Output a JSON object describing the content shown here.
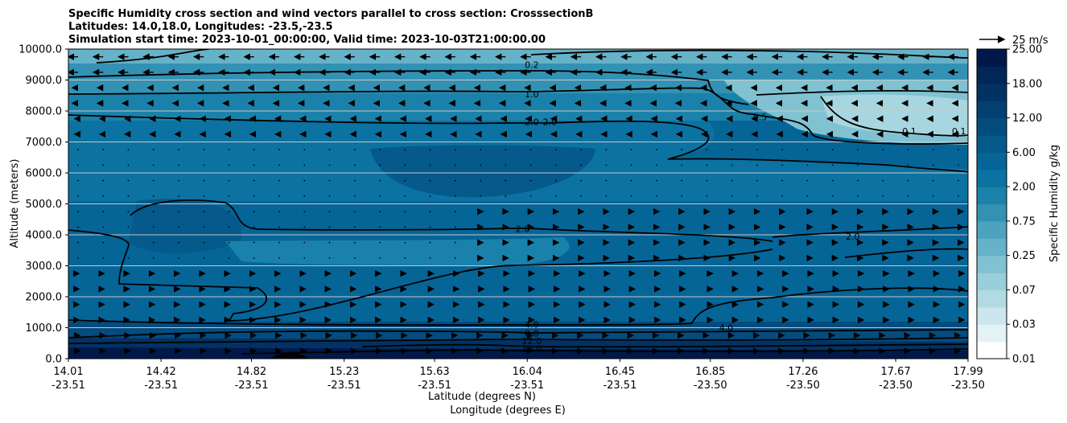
{
  "chart_data": {
    "type": "contourf",
    "title_lines": [
      "Specific Humidity cross section and wind vectors parallel to cross section: CrosssectionB",
      "Latitudes: 14.0,18.0, Longitudes: -23.5,-23.5",
      "Simulation start time: 2023-10-01_00:00:00, Valid time: 2023-10-03T21:00:00.00"
    ],
    "ylabel": "Altitude (meters)",
    "xlabel_lines": [
      "Latitude (degrees N)",
      "Longitude (degrees E)"
    ],
    "ylim": [
      0,
      10000
    ],
    "yticks": [
      "0.0",
      "1000.0",
      "2000.0",
      "3000.0",
      "4000.0",
      "5000.0",
      "6000.0",
      "7000.0",
      "8000.0",
      "9000.0",
      "10000.0"
    ],
    "yticks_values": [
      0,
      1000,
      2000,
      3000,
      4000,
      5000,
      6000,
      7000,
      8000,
      9000,
      10000
    ],
    "xlim": [
      14.01,
      17.99
    ],
    "xticks_values": [
      14.01,
      14.42,
      14.82,
      15.23,
      15.63,
      16.04,
      16.45,
      16.85,
      17.26,
      17.67,
      17.99
    ],
    "xticks_lat": [
      "14.01",
      "14.42",
      "14.82",
      "15.23",
      "15.63",
      "16.04",
      "16.45",
      "16.85",
      "17.26",
      "17.67",
      "17.99"
    ],
    "xticks_lon": [
      "-23.51",
      "-23.51",
      "-23.51",
      "-23.51",
      "-23.51",
      "-23.51",
      "-23.51",
      "-23.50",
      "-23.50",
      "-23.50",
      "-23.50"
    ],
    "grid": "horizontal",
    "contour_labels": [
      {
        "text": "0.2",
        "x": 16.06,
        "y": 9500
      },
      {
        "text": "1.0",
        "x": 16.06,
        "y": 8550
      },
      {
        "text": "2.0",
        "x": 16.06,
        "y": 7650
      },
      {
        "text": "2.0",
        "x": 16.14,
        "y": 7650
      },
      {
        "text": "0.5",
        "x": 17.07,
        "y": 7800
      },
      {
        "text": "0.1",
        "x": 17.73,
        "y": 7350
      },
      {
        "text": "0.1",
        "x": 17.95,
        "y": 7350
      },
      {
        "text": "2.0",
        "x": 16.02,
        "y": 4200
      },
      {
        "text": "2.0",
        "x": 17.48,
        "y": 3950
      },
      {
        "text": "4.0",
        "x": 16.06,
        "y": 1100
      },
      {
        "text": "4.0",
        "x": 16.92,
        "y": 1000
      },
      {
        "text": "8.0",
        "x": 16.06,
        "y": 820
      },
      {
        "text": "12.0",
        "x": 16.06,
        "y": 570
      },
      {
        "text": "16.0",
        "x": 16.06,
        "y": 330
      }
    ],
    "colorbar": {
      "label": "Specific Humidity g/kg",
      "levels": [
        0.01,
        0.02,
        0.03,
        0.05,
        0.07,
        0.1,
        0.25,
        0.4,
        0.75,
        1.0,
        2.0,
        4.0,
        6.0,
        8.0,
        12.0,
        15.0,
        18.0,
        21.0,
        25.0
      ],
      "tick_labels": [
        "0.01",
        "0.03",
        "0.07",
        "0.25",
        "0.75",
        "2.00",
        "6.00",
        "12.00",
        "18.00",
        "25.00"
      ],
      "colors": [
        "#ffffff",
        "#e4f2f5",
        "#cbe6ec",
        "#b2dae3",
        "#99cedb",
        "#80c2d2",
        "#66b2c8",
        "#4da2be",
        "#3392b4",
        "#1a82aa",
        "#0b72a2",
        "#066597",
        "#05598b",
        "#044c7e",
        "#033f71",
        "#023264",
        "#012657",
        "#00194a"
      ]
    },
    "quiver_key": {
      "label": "25 m/s",
      "speed": 25
    }
  }
}
